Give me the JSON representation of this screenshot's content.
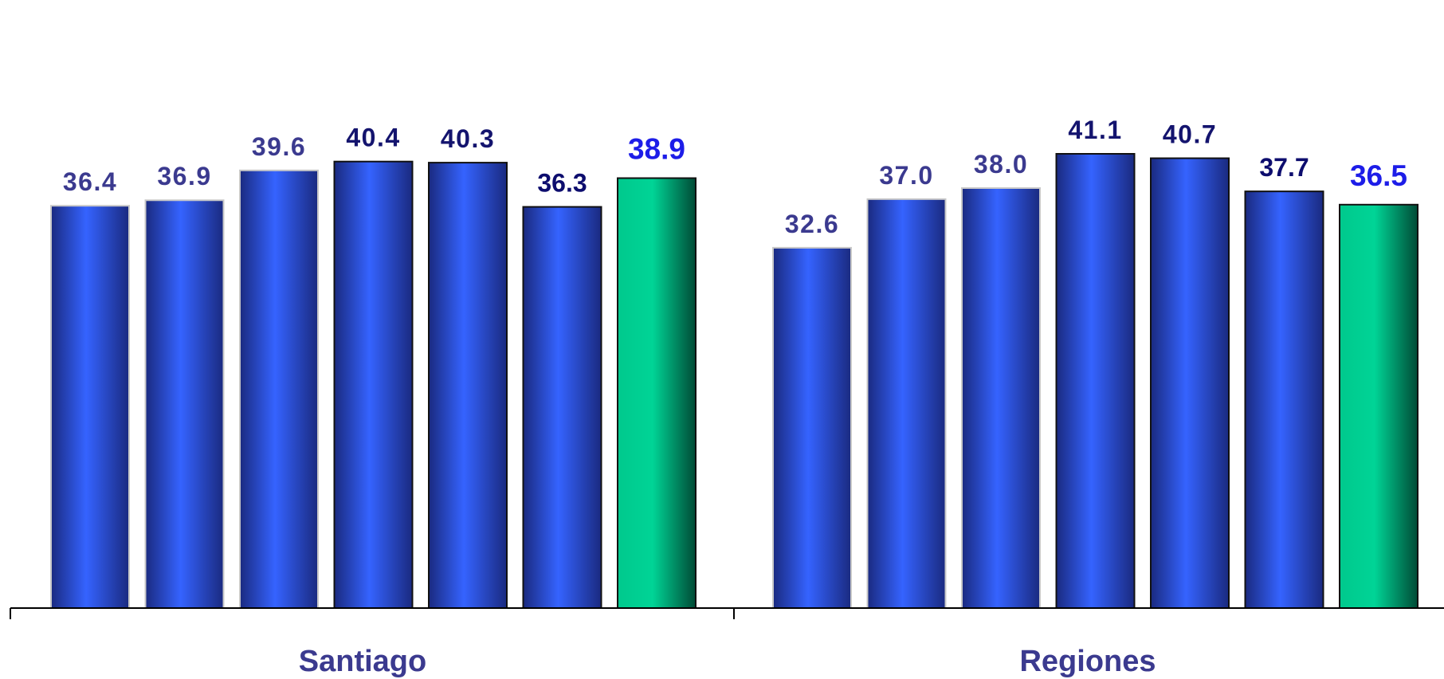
{
  "chart_data": {
    "type": "bar",
    "categories": [
      "Santiago",
      "Regiones"
    ],
    "groups": [
      {
        "name": "Santiago",
        "values": [
          36.4,
          36.9,
          39.6,
          40.4,
          40.3,
          36.3,
          38.9
        ],
        "value_labels": [
          "36.4",
          "36.9",
          "39.6",
          "40.4",
          "40.3",
          "36.3",
          "38.9"
        ]
      },
      {
        "name": "Regiones",
        "values": [
          32.6,
          37.0,
          38.0,
          41.1,
          40.7,
          37.7,
          36.5
        ],
        "value_labels": [
          "32.6",
          "37.0",
          "38.0",
          "41.1",
          "40.7",
          "37.7",
          "36.5"
        ]
      }
    ],
    "ylim": [
      0,
      45
    ],
    "grid": false,
    "legend": "none",
    "colors": {
      "bar_blue": "#2f5cf0",
      "bar_blue_dark": "#1a2a80",
      "bar_green": "#00c98d",
      "bar_green_dark": "#005e42",
      "label_light": "#3b3a8f",
      "label_dark": "#0d0d6e",
      "label_highlight": "#1d1de8",
      "axis": "#000000"
    }
  }
}
